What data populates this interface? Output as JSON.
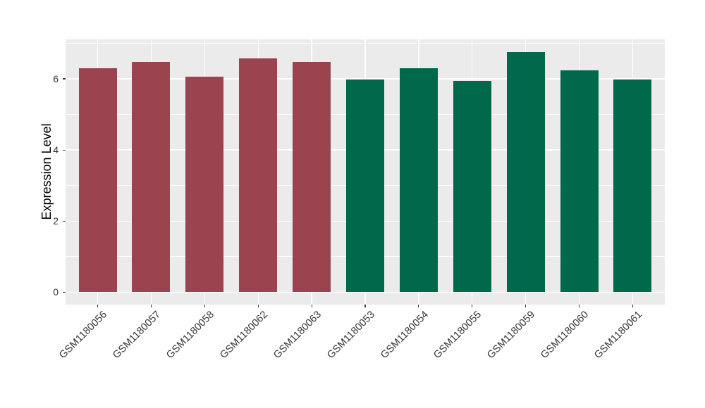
{
  "chart_data": {
    "type": "bar",
    "title": "",
    "xlabel": "",
    "ylabel": "Expression Level",
    "categories": [
      "GSM1180056",
      "GSM1180057",
      "GSM1180058",
      "GSM1180062",
      "GSM1180063",
      "GSM1180053",
      "GSM1180054",
      "GSM1180055",
      "GSM1180059",
      "GSM1180060",
      "GSM1180061"
    ],
    "values": [
      6.3,
      6.48,
      6.07,
      6.57,
      6.48,
      5.99,
      6.3,
      5.94,
      6.76,
      6.24,
      5.98
    ],
    "bar_colors": [
      "#9B4450",
      "#9B4450",
      "#9B4450",
      "#9B4450",
      "#9B4450",
      "#00694B",
      "#00694B",
      "#00694B",
      "#00694B",
      "#00694B",
      "#00694B"
    ],
    "ylim": [
      -0.34,
      7.11
    ],
    "yticks": [
      0,
      2,
      4,
      6
    ],
    "yminorticks": [
      1,
      3,
      5,
      7
    ],
    "x_label_angle": -45,
    "legend": "none",
    "grid": "white major+minor horizontal, white vertical at category centers",
    "panel_bg": "#EBEBEB",
    "grid_color": "#FFFFFF",
    "tick_mark_color": "#333333",
    "axis_text_color": "#333333",
    "axis_title_color": "#000000"
  }
}
